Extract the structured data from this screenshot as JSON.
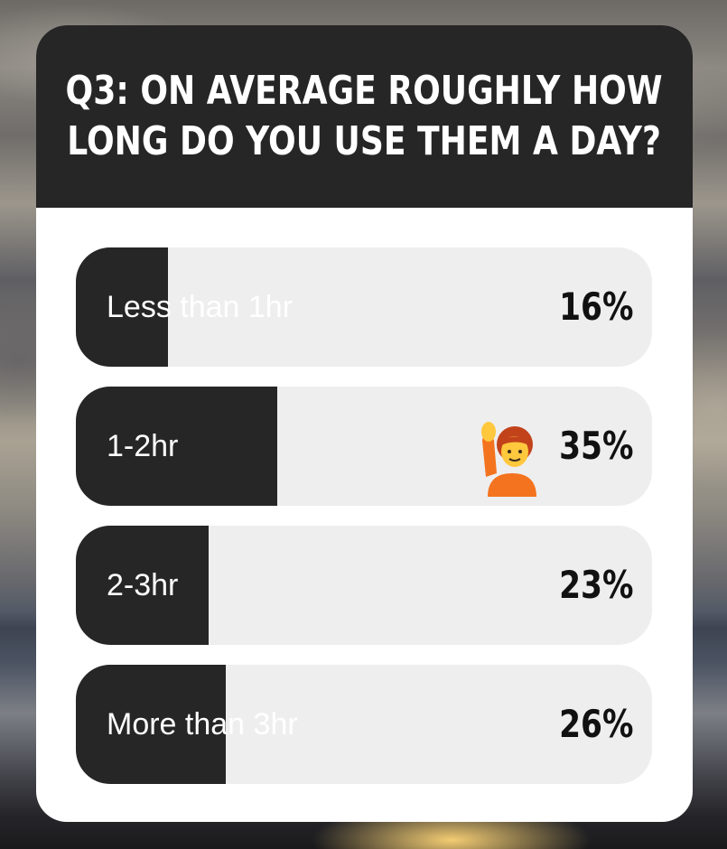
{
  "poll": {
    "question": "Q3: ON AVERAGE ROUGHLY HOW LONG DO YOU USE THEM A DAY?",
    "question_line1": "Q3: ON AVERAGE ROUGHLY HOW",
    "question_line2": "LONG DO YOU USE THEM A DAY?",
    "options": [
      {
        "label": "Less than 1hr",
        "percent": "16%",
        "value": 0.16
      },
      {
        "label": "1-2hr",
        "percent": "35%",
        "value": 0.35,
        "selected_icon": "raising-hand-emoji"
      },
      {
        "label": "2-3hr",
        "percent": "23%",
        "value": 0.23
      },
      {
        "label": "More than 3hr",
        "percent": "26%",
        "value": 0.26
      }
    ]
  },
  "colors": {
    "card": "#ffffff",
    "header": "#262626",
    "bar_track": "#eeeeee",
    "bar_fill": "#262626"
  }
}
